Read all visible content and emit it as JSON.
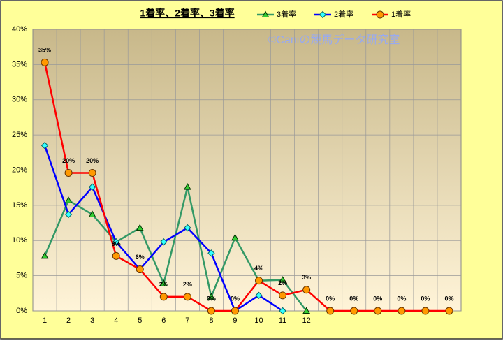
{
  "chart_data": {
    "type": "line",
    "title": "1着率、2着率、3着率",
    "watermark": "©Caniの競馬データ研究室",
    "categories": [
      "1",
      "2",
      "3",
      "4",
      "5",
      "6",
      "7",
      "8",
      "9",
      "10",
      "11",
      "12",
      null,
      null,
      null,
      null,
      null,
      null
    ],
    "series": [
      {
        "name": "3着率",
        "color": "#339966",
        "marker": "triangle",
        "marker_color": "#33cc33",
        "values": [
          7.8,
          15.7,
          13.7,
          9.8,
          11.8,
          3.9,
          17.6,
          2.0,
          10.4,
          4.3,
          4.4,
          0,
          null,
          null,
          null,
          null,
          null,
          null
        ]
      },
      {
        "name": "2着率",
        "color": "#0000ff",
        "marker": "diamond",
        "marker_color": "#33ffff",
        "values": [
          23.5,
          13.7,
          17.6,
          9.8,
          5.9,
          9.8,
          11.8,
          8.2,
          0,
          2.2,
          0,
          null,
          null,
          null,
          null,
          null,
          null,
          null
        ]
      },
      {
        "name": "1着率",
        "color": "#ff0000",
        "marker": "circle",
        "marker_color": "#ff9900",
        "values": [
          35.3,
          19.6,
          19.6,
          7.8,
          5.9,
          2.0,
          2.0,
          0,
          0,
          4.3,
          2.2,
          3.0,
          0,
          0,
          0,
          0,
          0,
          0
        ],
        "value_labels": [
          "35%",
          "20%",
          "20%",
          "8%",
          "6%",
          "2%",
          "2%",
          "0%",
          "0%",
          "4%",
          "2%",
          "3%",
          "0%",
          "0%",
          "0%",
          "0%",
          "0%",
          "0%"
        ]
      }
    ],
    "ylim": [
      0,
      40
    ],
    "yticks": [
      {
        "value": 0,
        "label": "0%"
      },
      {
        "value": 5,
        "label": "5%"
      },
      {
        "value": 10,
        "label": "10%"
      },
      {
        "value": 15,
        "label": "15%"
      },
      {
        "value": 20,
        "label": "20%"
      },
      {
        "value": 25,
        "label": "25%"
      },
      {
        "value": 30,
        "label": "30%"
      },
      {
        "value": 35,
        "label": "35%"
      },
      {
        "value": 40,
        "label": "40%"
      }
    ],
    "grid": true
  }
}
